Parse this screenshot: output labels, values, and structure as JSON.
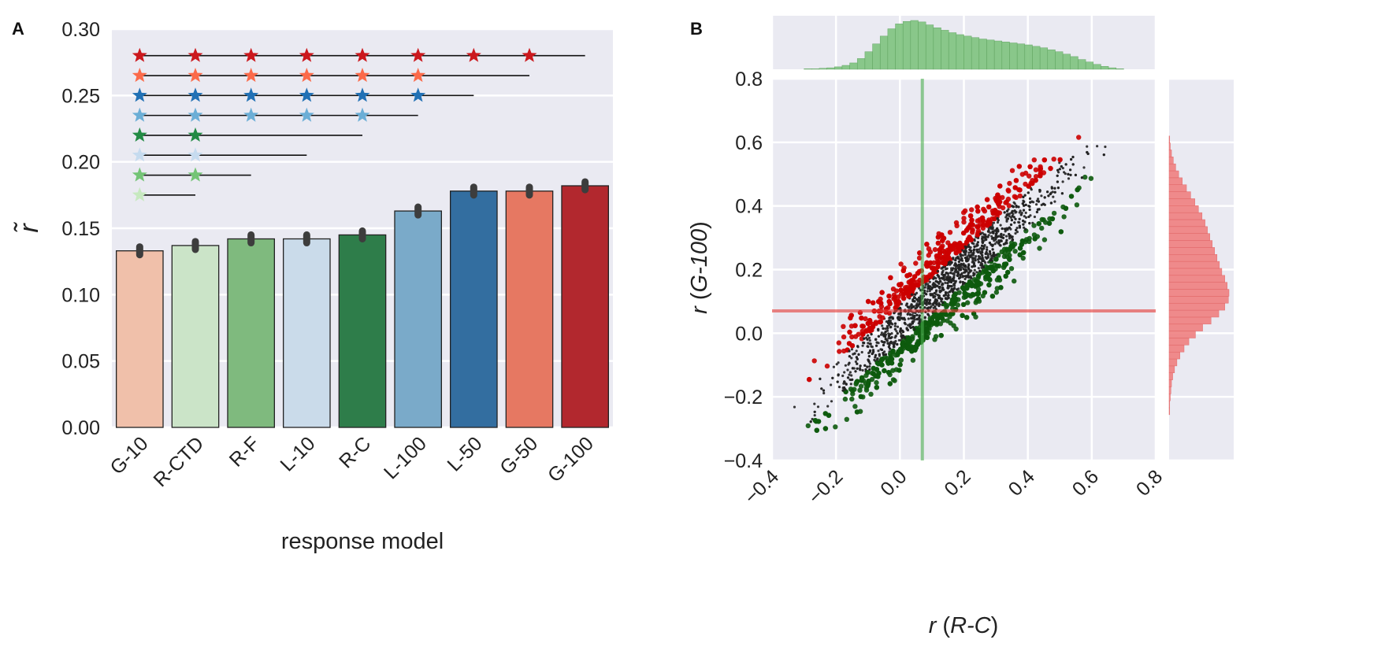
{
  "colors": {
    "axes_bg": "#eaeaf2",
    "grid": "#ffffff",
    "errbar": "#3d3d3d"
  },
  "chart_data": [
    {
      "panel": "A",
      "type": "bar",
      "xlabel": "response model",
      "ylabel": "r̃",
      "ylim": [
        0,
        0.3
      ],
      "yticks": [
        "0.00",
        "0.05",
        "0.10",
        "0.15",
        "0.20",
        "0.25",
        "0.30"
      ],
      "ytick_values": [
        0,
        0.05,
        0.1,
        0.15,
        0.2,
        0.25,
        0.3
      ],
      "categories": [
        "G-10",
        "R-CTD",
        "R-F",
        "L-10",
        "R-C",
        "L-100",
        "L-50",
        "G-50",
        "G-100"
      ],
      "values": [
        0.133,
        0.137,
        0.142,
        0.142,
        0.145,
        0.163,
        0.178,
        0.178,
        0.182
      ],
      "errors": [
        0.003,
        0.003,
        0.003,
        0.003,
        0.003,
        0.003,
        0.003,
        0.003,
        0.003
      ],
      "bar_colors": [
        "#f0c0aa",
        "#cbe4c8",
        "#7fba7e",
        "#cadbea",
        "#2e7d4a",
        "#7aaac9",
        "#336ea0",
        "#e67862",
        "#b2282e"
      ],
      "significance": [
        {
          "model": "G-100",
          "y": 0.28,
          "color": "#cb181d",
          "stars": [
            0,
            1,
            2,
            3,
            4,
            5,
            6,
            7
          ],
          "line_to": 8
        },
        {
          "model": "G-50",
          "y": 0.265,
          "color": "#fb6a4a",
          "stars": [
            0,
            1,
            2,
            3,
            4,
            5
          ],
          "line_to": 7
        },
        {
          "model": "L-50",
          "y": 0.25,
          "color": "#2171b5",
          "stars": [
            0,
            1,
            2,
            3,
            4,
            5
          ],
          "line_to": 6
        },
        {
          "model": "L-100",
          "y": 0.235,
          "color": "#6baed6",
          "stars": [
            0,
            1,
            2,
            3,
            4
          ],
          "line_to": 5
        },
        {
          "model": "R-C",
          "y": 0.22,
          "color": "#238b45",
          "stars": [
            0,
            1
          ],
          "line_to": 4
        },
        {
          "model": "L-10",
          "y": 0.205,
          "color": "#c6dbef",
          "stars": [
            0,
            1
          ],
          "line_to": 3
        },
        {
          "model": "R-F",
          "y": 0.19,
          "color": "#74c476",
          "stars": [
            0,
            1
          ],
          "line_to": 2
        },
        {
          "model": "R-CTD",
          "y": 0.175,
          "color": "#c7e9c0",
          "stars": [
            0
          ],
          "line_to": 1
        }
      ]
    },
    {
      "panel": "B",
      "type": "scatter",
      "xlabel_prefix": "r",
      "xlabel_model": "R-C",
      "ylabel_prefix": "r",
      "ylabel_model": "G-100",
      "xlim": [
        -0.4,
        0.8
      ],
      "ylim": [
        -0.4,
        0.8
      ],
      "xticks": [
        "−0.4",
        "−0.2",
        "0.0",
        "0.2",
        "0.4",
        "0.6",
        "0.8"
      ],
      "xtick_values": [
        -0.4,
        -0.2,
        0.0,
        0.2,
        0.4,
        0.6,
        0.8
      ],
      "yticks": [
        "−0.4",
        "−0.2",
        "0.0",
        "0.2",
        "0.4",
        "0.6",
        "0.8"
      ],
      "ytick_values": [
        -0.4,
        -0.2,
        0.0,
        0.2,
        0.4,
        0.6,
        0.8
      ],
      "vline_x": 0.07,
      "hline_y": 0.07,
      "point_colors": {
        "above": "#cc0000",
        "near_diagonal": "#222222",
        "below": "#0d5a0d"
      },
      "top_hist": {
        "color": "#7fc47f",
        "range": [
          -0.3,
          0.7
        ],
        "values": [
          0.01,
          0.01,
          0.02,
          0.03,
          0.05,
          0.08,
          0.13,
          0.22,
          0.36,
          0.52,
          0.68,
          0.83,
          0.93,
          0.98,
          1.0,
          0.97,
          0.91,
          0.85,
          0.8,
          0.75,
          0.71,
          0.68,
          0.65,
          0.62,
          0.6,
          0.58,
          0.56,
          0.54,
          0.52,
          0.5,
          0.47,
          0.44,
          0.4,
          0.36,
          0.31,
          0.26,
          0.2,
          0.15,
          0.1,
          0.06,
          0.03,
          0.01
        ]
      },
      "right_hist": {
        "color": "#f08080",
        "range": [
          -0.3,
          0.62
        ],
        "values": [
          0.0,
          0.0,
          0.01,
          0.01,
          0.02,
          0.03,
          0.04,
          0.06,
          0.09,
          0.13,
          0.18,
          0.25,
          0.33,
          0.44,
          0.56,
          0.7,
          0.83,
          0.93,
          0.99,
          1.0,
          0.97,
          0.93,
          0.88,
          0.84,
          0.8,
          0.76,
          0.72,
          0.68,
          0.64,
          0.6,
          0.55,
          0.49,
          0.43,
          0.36,
          0.29,
          0.22,
          0.16,
          0.11,
          0.07,
          0.04,
          0.02,
          0.01
        ]
      }
    }
  ],
  "panel_labels": [
    "A",
    "B"
  ]
}
